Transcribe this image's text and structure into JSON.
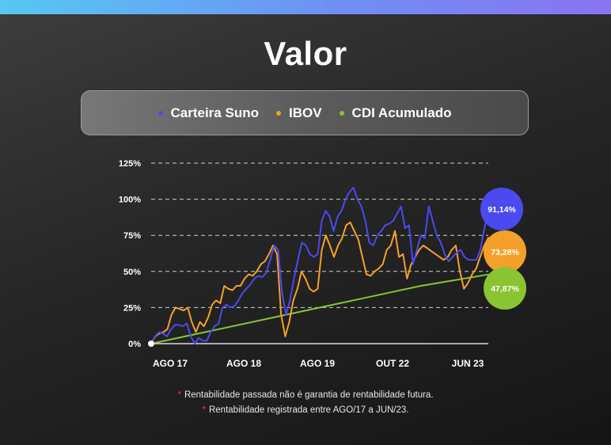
{
  "title": "Valor",
  "legend": [
    {
      "label": "Carteira Suno",
      "color": "#4a4af0"
    },
    {
      "label": "IBOV",
      "color": "#f5a02a"
    },
    {
      "label": "CDI Acumulado",
      "color": "#8ac432"
    }
  ],
  "footnotes": [
    "Rentabilidade passada não é garantia de rentabilidade futura.",
    "Rentabilidade registrada entre AGO/17 a JUN/23."
  ],
  "chart_data": {
    "type": "line",
    "title": "Valor",
    "xlabel": "",
    "ylabel": "",
    "ylim": [
      0,
      125
    ],
    "yticks": [
      0,
      25,
      50,
      75,
      100,
      125
    ],
    "ytick_labels": [
      "0%",
      "25%",
      "50%",
      "75%",
      "100%",
      "125%"
    ],
    "xtick_labels": [
      "AGO 17",
      "AGO 18",
      "AGO 19",
      "OUT 22",
      "JUN 23"
    ],
    "grid": true,
    "legend_position": "top",
    "series": [
      {
        "name": "Carteira Suno",
        "color": "#4a4af0",
        "values": [
          0,
          5,
          8,
          7,
          5,
          10,
          13,
          13,
          12,
          14,
          5,
          0,
          4,
          2,
          2,
          8,
          12,
          14,
          25,
          27,
          25,
          26,
          30,
          35,
          38,
          41,
          45,
          47,
          46,
          49,
          58,
          68,
          65,
          35,
          20,
          30,
          45,
          58,
          70,
          68,
          62,
          60,
          62,
          85,
          92,
          88,
          78,
          88,
          92,
          100,
          105,
          108,
          100,
          95,
          85,
          70,
          68,
          75,
          78,
          82,
          83,
          85,
          90,
          95,
          80,
          82,
          55,
          65,
          75,
          73,
          95,
          85,
          75,
          70,
          62,
          57,
          60,
          63,
          65,
          60,
          58,
          58,
          58,
          65,
          80,
          91.14
        ],
        "end_label": "91,14%"
      },
      {
        "name": "IBOV",
        "color": "#f5a02a",
        "values": [
          0,
          5,
          7,
          8,
          10,
          20,
          25,
          24,
          23,
          25,
          15,
          8,
          15,
          12,
          18,
          27,
          30,
          28,
          40,
          38,
          37,
          40,
          40,
          45,
          48,
          47,
          50,
          55,
          57,
          62,
          68,
          62,
          20,
          5,
          15,
          30,
          38,
          50,
          45,
          38,
          36,
          38,
          65,
          75,
          68,
          60,
          68,
          73,
          82,
          84,
          78,
          72,
          60,
          48,
          47,
          50,
          52,
          55,
          65,
          68,
          78,
          60,
          62,
          45,
          55,
          60,
          65,
          68,
          66,
          64,
          62,
          60,
          58,
          60,
          65,
          68,
          50,
          38,
          42,
          48,
          52,
          60,
          68,
          73.28
        ],
        "end_label": "73,28%"
      },
      {
        "name": "CDI Acumulado",
        "color": "#8ac432",
        "values": [
          0,
          10,
          20,
          30,
          40,
          47.87
        ],
        "end_label": "47,87%"
      }
    ]
  }
}
